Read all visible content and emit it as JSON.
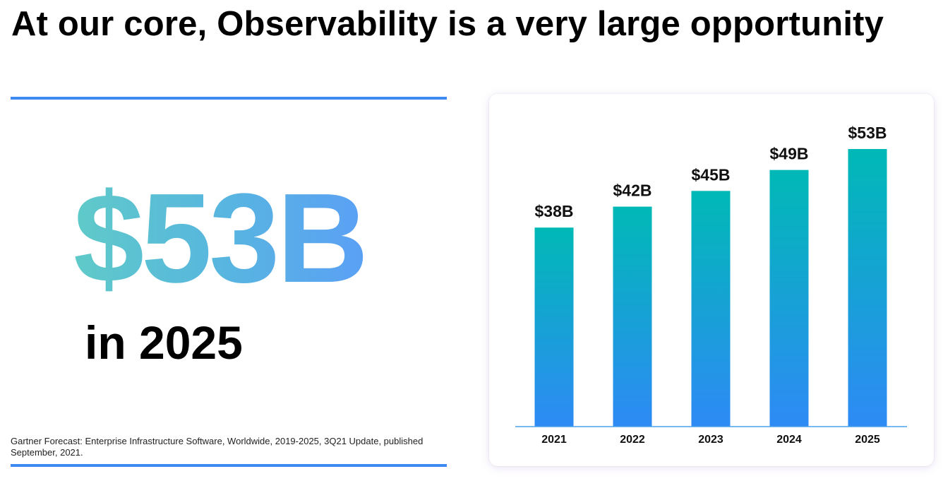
{
  "slide": {
    "title": "At our core, Observability is a very large opportunity",
    "headline_value": "$53B",
    "headline_sub": "in 2025",
    "source_note": "Gartner Forecast: Enterprise Infrastructure Software, Worldwide, 2019-2025, 3Q21 Update, published September, 2021."
  },
  "colors": {
    "rule": "#3d8bf0",
    "bar_top": "#00b9b6",
    "bar_bottom": "#2e8af5",
    "axis": "#4aa3ea"
  },
  "chart_data": {
    "type": "bar",
    "title": "",
    "xlabel": "",
    "ylabel": "",
    "categories": [
      "2021",
      "2022",
      "2023",
      "2024",
      "2025"
    ],
    "values": [
      38,
      42,
      45,
      49,
      53
    ],
    "value_labels": [
      "$38B",
      "$42B",
      "$45B",
      "$49B",
      "$53B"
    ],
    "ylim": [
      0,
      53
    ],
    "grid": false
  }
}
